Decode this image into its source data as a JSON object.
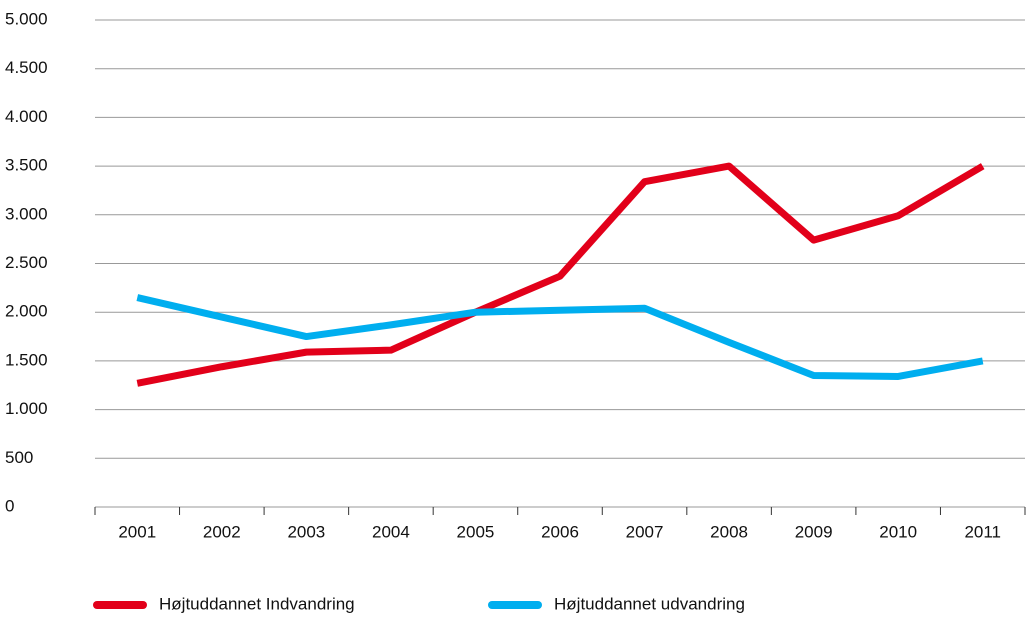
{
  "chart_data": {
    "type": "line",
    "categories": [
      "2001",
      "2002",
      "2003",
      "2004",
      "2005",
      "2006",
      "2007",
      "2008",
      "2009",
      "2010",
      "2011"
    ],
    "series": [
      {
        "name": "Højtuddannet Indvandring",
        "color": "#e2001a",
        "values": [
          1270,
          1440,
          1590,
          1610,
          2000,
          2370,
          3340,
          3500,
          2740,
          2990,
          3500
        ]
      },
      {
        "name": "Højtuddannet udvandring",
        "color": "#00aeef",
        "values": [
          2150,
          1950,
          1750,
          1870,
          2000,
          2020,
          2040,
          1690,
          1350,
          1340,
          1500
        ]
      }
    ],
    "ylim": [
      0,
      5000
    ],
    "yticks": [
      0,
      500,
      {
        "value": 1000,
        "label": "1.000"
      },
      {
        "value": 1500,
        "label": "1.500"
      },
      {
        "value": 2000,
        "label": "2.000"
      },
      {
        "value": 2500,
        "label": "2.500"
      },
      {
        "value": 3000,
        "label": "3.000"
      },
      {
        "value": 3500,
        "label": "3.500"
      },
      {
        "value": 4000,
        "label": "4.000"
      },
      {
        "value": 4500,
        "label": "4.500"
      },
      {
        "value": 5000,
        "label": "5.000"
      }
    ],
    "grid": true
  }
}
